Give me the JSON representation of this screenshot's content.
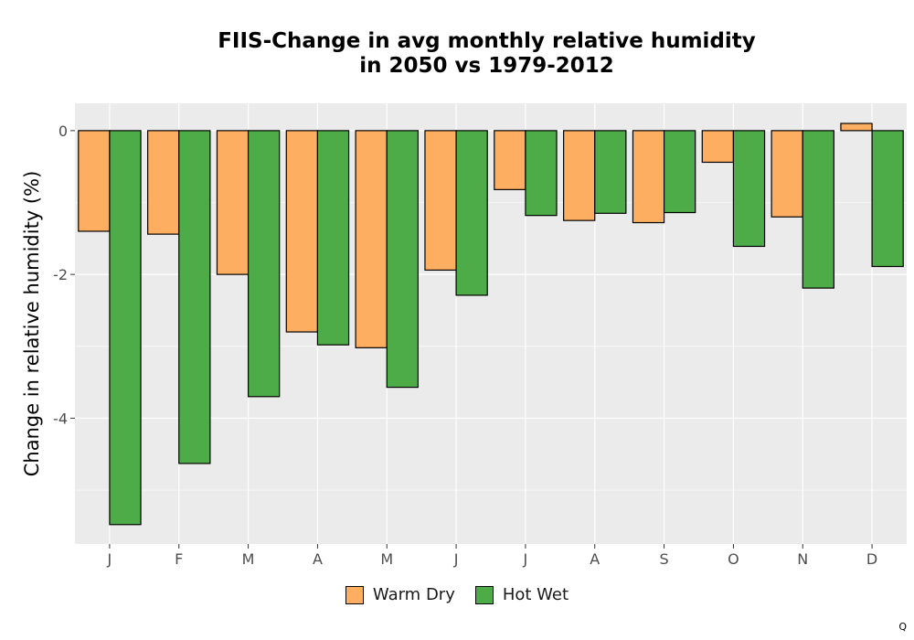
{
  "chart_data": {
    "type": "bar",
    "title_lines": [
      "FIIS-Change in avg monthly relative humidity",
      "in 2050 vs 1979-2012"
    ],
    "xlabel": "",
    "ylabel": "Change in relative humidity (%)",
    "categories": [
      "J",
      "F",
      "M",
      "A",
      "M",
      "J",
      "J",
      "A",
      "S",
      "O",
      "N",
      "D"
    ],
    "series": [
      {
        "name": "Warm Dry",
        "color": "#FDAE61",
        "values": [
          -1.4,
          -1.44,
          -2.0,
          -2.8,
          -3.02,
          -1.94,
          -0.82,
          -1.25,
          -1.28,
          -0.44,
          -1.2,
          0.1
        ]
      },
      {
        "name": "Hot Wet",
        "color": "#4DAC47",
        "values": [
          -5.48,
          -4.63,
          -3.7,
          -2.98,
          -3.57,
          -2.29,
          -1.18,
          -1.15,
          -1.14,
          -1.61,
          -2.19,
          -1.89
        ]
      }
    ],
    "ylim": [
      -5.75,
      0.38
    ],
    "yticks": [
      0,
      -2,
      -4
    ],
    "ytick_labels": [
      "0",
      "-2",
      "-4"
    ],
    "grid": true,
    "legend_position": "bottom",
    "panel_color": "#EBEBEB",
    "grid_color": "#FFFFFF"
  },
  "footer": {
    "mark": "Q"
  }
}
